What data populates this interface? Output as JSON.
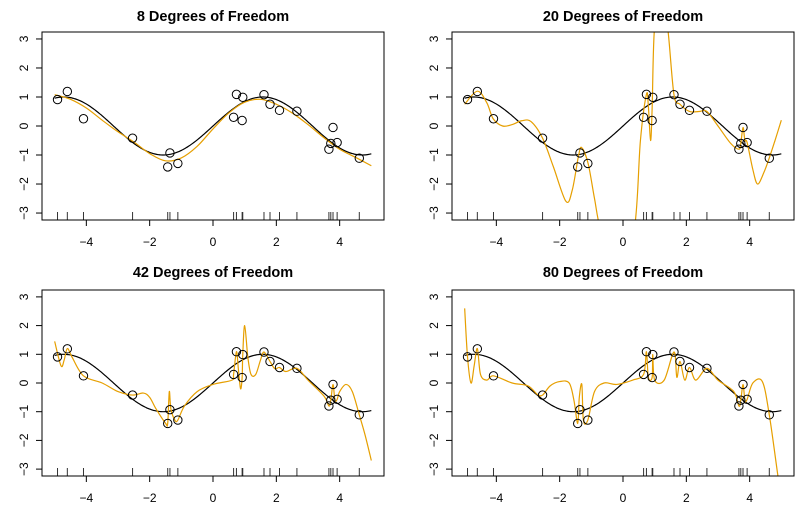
{
  "chart_data": [
    {
      "type": "line",
      "title": "8 Degrees of Freedom",
      "xlim": [
        -5.4,
        5.4
      ],
      "ylim": [
        -3.24,
        3.24
      ],
      "xticks": [
        -4,
        -2,
        0,
        2,
        4
      ],
      "yticks": [
        -3,
        -2,
        -1,
        0,
        1,
        2,
        3
      ],
      "true_function": "sin(x)",
      "points": [
        [
          -4.91,
          0.91
        ],
        [
          -4.6,
          1.19
        ],
        [
          -4.09,
          0.25
        ],
        [
          -2.54,
          -0.42
        ],
        [
          -1.36,
          -0.93
        ],
        [
          -1.43,
          -1.41
        ],
        [
          -1.11,
          -1.29
        ],
        [
          0.74,
          1.09
        ],
        [
          0.65,
          0.3
        ],
        [
          0.94,
          0.99
        ],
        [
          0.92,
          0.19
        ],
        [
          1.61,
          1.08
        ],
        [
          1.8,
          0.75
        ],
        [
          2.1,
          0.54
        ],
        [
          2.65,
          0.51
        ],
        [
          3.79,
          -0.05
        ],
        [
          3.66,
          -0.8
        ],
        [
          3.72,
          -0.6
        ],
        [
          3.92,
          -0.57
        ],
        [
          4.62,
          -1.11
        ]
      ],
      "fit": [
        [
          -5,
          1.08
        ],
        [
          -4.5,
          0.92
        ],
        [
          -4,
          0.62
        ],
        [
          -3.5,
          0.2
        ],
        [
          -3,
          -0.2
        ],
        [
          -2.5,
          -0.55
        ],
        [
          -2,
          -0.95
        ],
        [
          -1.5,
          -1.2
        ],
        [
          -1,
          -1.1
        ],
        [
          -0.5,
          -0.7
        ],
        [
          0,
          -0.1
        ],
        [
          0.5,
          0.45
        ],
        [
          1,
          0.82
        ],
        [
          1.5,
          0.92
        ],
        [
          2,
          0.75
        ],
        [
          2.5,
          0.45
        ],
        [
          3,
          0.05
        ],
        [
          3.5,
          -0.4
        ],
        [
          4,
          -0.8
        ],
        [
          4.5,
          -1.08
        ],
        [
          5,
          -1.37
        ]
      ],
      "colors": {
        "fit": "#E69F00",
        "truth": "#000000"
      }
    },
    {
      "type": "line",
      "title": "20 Degrees of Freedom",
      "xlim": [
        -5.4,
        5.4
      ],
      "ylim": [
        -3.24,
        3.24
      ],
      "xticks": [
        -4,
        -2,
        0,
        2,
        4
      ],
      "yticks": [
        -3,
        -2,
        -1,
        0,
        1,
        2,
        3
      ],
      "true_function": "sin(x)",
      "points": [
        [
          -4.91,
          0.91
        ],
        [
          -4.6,
          1.19
        ],
        [
          -4.09,
          0.25
        ],
        [
          -2.54,
          -0.42
        ],
        [
          -1.36,
          -0.93
        ],
        [
          -1.43,
          -1.41
        ],
        [
          -1.11,
          -1.29
        ],
        [
          0.74,
          1.09
        ],
        [
          0.65,
          0.3
        ],
        [
          0.94,
          0.99
        ],
        [
          0.92,
          0.19
        ],
        [
          1.61,
          1.08
        ],
        [
          1.8,
          0.75
        ],
        [
          2.1,
          0.54
        ],
        [
          2.65,
          0.51
        ],
        [
          3.79,
          -0.05
        ],
        [
          3.66,
          -0.8
        ],
        [
          3.72,
          -0.6
        ],
        [
          3.92,
          -0.57
        ],
        [
          4.62,
          -1.11
        ]
      ],
      "fit": [
        [
          -5,
          0.75
        ],
        [
          -4.6,
          1.2
        ],
        [
          -4.3,
          0.8
        ],
        [
          -4.1,
          0.25
        ],
        [
          -3.8,
          0.0
        ],
        [
          -3.5,
          0.05
        ],
        [
          -3.2,
          0.18
        ],
        [
          -2.9,
          0.15
        ],
        [
          -2.54,
          -0.42
        ],
        [
          -2.2,
          -1.4
        ],
        [
          -1.8,
          -2.6
        ],
        [
          -1.6,
          -2.2
        ],
        [
          -1.4,
          -1.0
        ],
        [
          -1.3,
          -0.75
        ],
        [
          -1.1,
          -1.3
        ],
        [
          -0.9,
          -2.5
        ],
        [
          -0.7,
          -3.6
        ],
        [
          -0.2,
          -5
        ],
        [
          0.35,
          -3.6
        ],
        [
          0.55,
          -0.5
        ],
        [
          0.74,
          1.09
        ],
        [
          0.8,
          0.7
        ],
        [
          0.87,
          -0.5
        ],
        [
          0.92,
          0.6
        ],
        [
          0.99,
          3.3
        ],
        [
          1.2,
          5
        ],
        [
          1.42,
          3.3
        ],
        [
          1.61,
          1.08
        ],
        [
          1.8,
          0.75
        ],
        [
          2.1,
          0.5
        ],
        [
          2.4,
          0.5
        ],
        [
          2.65,
          0.5
        ],
        [
          3.0,
          0.0
        ],
        [
          3.4,
          -0.6
        ],
        [
          3.66,
          -0.8
        ],
        [
          3.72,
          -0.6
        ],
        [
          3.79,
          -0.05
        ],
        [
          3.85,
          -0.5
        ],
        [
          3.92,
          -0.57
        ],
        [
          4.1,
          -1.5
        ],
        [
          4.25,
          -2.0
        ],
        [
          4.45,
          -1.6
        ],
        [
          4.62,
          -1.1
        ],
        [
          4.8,
          -0.5
        ],
        [
          5,
          0.2
        ]
      ],
      "colors": {
        "fit": "#E69F00",
        "truth": "#000000"
      }
    },
    {
      "type": "line",
      "title": "42 Degrees of Freedom",
      "xlim": [
        -5.4,
        5.4
      ],
      "ylim": [
        -3.24,
        3.24
      ],
      "xticks": [
        -4,
        -2,
        0,
        2,
        4
      ],
      "yticks": [
        -3,
        -2,
        -1,
        0,
        1,
        2,
        3
      ],
      "true_function": "sin(x)",
      "points": [
        [
          -4.91,
          0.91
        ],
        [
          -4.6,
          1.19
        ],
        [
          -4.09,
          0.25
        ],
        [
          -2.54,
          -0.42
        ],
        [
          -1.36,
          -0.93
        ],
        [
          -1.43,
          -1.41
        ],
        [
          -1.11,
          -1.29
        ],
        [
          0.74,
          1.09
        ],
        [
          0.65,
          0.3
        ],
        [
          0.94,
          0.99
        ],
        [
          0.92,
          0.19
        ],
        [
          1.61,
          1.08
        ],
        [
          1.8,
          0.75
        ],
        [
          2.1,
          0.54
        ],
        [
          2.65,
          0.51
        ],
        [
          3.79,
          -0.05
        ],
        [
          3.66,
          -0.8
        ],
        [
          3.72,
          -0.6
        ],
        [
          3.92,
          -0.57
        ],
        [
          4.62,
          -1.11
        ]
      ],
      "fit": [
        [
          -5,
          1.45
        ],
        [
          -4.8,
          0.6
        ],
        [
          -4.7,
          0.8
        ],
        [
          -4.6,
          1.2
        ],
        [
          -4.45,
          0.9
        ],
        [
          -4.09,
          0.25
        ],
        [
          -3.5,
          0.0
        ],
        [
          -3,
          -0.3
        ],
        [
          -2.54,
          -0.42
        ],
        [
          -2.2,
          -0.35
        ],
        [
          -2,
          -0.5
        ],
        [
          -1.8,
          -0.9
        ],
        [
          -1.5,
          -1.4
        ],
        [
          -1.43,
          -1.4
        ],
        [
          -1.38,
          -0.3
        ],
        [
          -1.33,
          -0.9
        ],
        [
          -1.2,
          -1.3
        ],
        [
          -1.11,
          -1.29
        ],
        [
          -0.9,
          -0.8
        ],
        [
          -0.5,
          -0.3
        ],
        [
          0,
          -0.05
        ],
        [
          0.6,
          0.1
        ],
        [
          0.65,
          0.3
        ],
        [
          0.74,
          1.09
        ],
        [
          0.8,
          0.5
        ],
        [
          0.87,
          -0.2
        ],
        [
          0.92,
          0.19
        ],
        [
          0.94,
          0.99
        ],
        [
          1.0,
          2.0
        ],
        [
          1.1,
          0.9
        ],
        [
          1.2,
          0.3
        ],
        [
          1.35,
          0.3
        ],
        [
          1.5,
          0.8
        ],
        [
          1.61,
          1.08
        ],
        [
          1.8,
          0.75
        ],
        [
          1.95,
          0.5
        ],
        [
          2.1,
          0.54
        ],
        [
          2.3,
          0.4
        ],
        [
          2.65,
          0.51
        ],
        [
          3.0,
          0.1
        ],
        [
          3.5,
          -0.45
        ],
        [
          3.66,
          -0.8
        ],
        [
          3.72,
          -0.6
        ],
        [
          3.79,
          -0.05
        ],
        [
          3.85,
          -0.6
        ],
        [
          3.92,
          -0.57
        ],
        [
          4.0,
          -0.3
        ],
        [
          4.2,
          -0.05
        ],
        [
          4.4,
          -0.3
        ],
        [
          4.62,
          -1.11
        ],
        [
          4.8,
          -1.8
        ],
        [
          5.0,
          -2.7
        ]
      ],
      "colors": {
        "fit": "#E69F00",
        "truth": "#000000"
      }
    },
    {
      "type": "line",
      "title": "80 Degrees of Freedom",
      "xlim": [
        -5.4,
        5.4
      ],
      "ylim": [
        -3.24,
        3.24
      ],
      "xticks": [
        -4,
        -2,
        0,
        2,
        4
      ],
      "yticks": [
        -3,
        -2,
        -1,
        0,
        1,
        2,
        3
      ],
      "true_function": "sin(x)",
      "points": [
        [
          -4.91,
          0.91
        ],
        [
          -4.6,
          1.19
        ],
        [
          -4.09,
          0.25
        ],
        [
          -2.54,
          -0.42
        ],
        [
          -1.36,
          -0.93
        ],
        [
          -1.43,
          -1.41
        ],
        [
          -1.11,
          -1.29
        ],
        [
          0.74,
          1.09
        ],
        [
          0.65,
          0.3
        ],
        [
          0.94,
          0.99
        ],
        [
          0.92,
          0.19
        ],
        [
          1.61,
          1.08
        ],
        [
          1.8,
          0.75
        ],
        [
          2.1,
          0.54
        ],
        [
          2.65,
          0.51
        ],
        [
          3.79,
          -0.05
        ],
        [
          3.66,
          -0.8
        ],
        [
          3.72,
          -0.6
        ],
        [
          3.92,
          -0.57
        ],
        [
          4.62,
          -1.11
        ]
      ],
      "fit": [
        [
          -5,
          2.6
        ],
        [
          -4.91,
          0.91
        ],
        [
          -4.8,
          0.0
        ],
        [
          -4.7,
          0.6
        ],
        [
          -4.6,
          1.2
        ],
        [
          -4.5,
          0.3
        ],
        [
          -4.3,
          0.1
        ],
        [
          -4.09,
          0.25
        ],
        [
          -3.5,
          0.0
        ],
        [
          -3,
          -0.1
        ],
        [
          -2.7,
          -0.4
        ],
        [
          -2.54,
          -0.42
        ],
        [
          -2.3,
          -0.1
        ],
        [
          -2.0,
          0.05
        ],
        [
          -1.7,
          0.0
        ],
        [
          -1.55,
          -0.6
        ],
        [
          -1.43,
          -1.41
        ],
        [
          -1.38,
          -0.5
        ],
        [
          -1.3,
          -0.05
        ],
        [
          -1.25,
          -1.3
        ],
        [
          -1.11,
          -1.29
        ],
        [
          -0.9,
          -0.3
        ],
        [
          -0.6,
          0.0
        ],
        [
          -0.2,
          -0.05
        ],
        [
          0.3,
          0.1
        ],
        [
          0.65,
          0.3
        ],
        [
          0.74,
          1.09
        ],
        [
          0.8,
          0.2
        ],
        [
          0.92,
          0.19
        ],
        [
          0.94,
          0.99
        ],
        [
          1.0,
          0.1
        ],
        [
          1.3,
          0.1
        ],
        [
          1.61,
          1.08
        ],
        [
          1.7,
          0.2
        ],
        [
          1.8,
          0.75
        ],
        [
          1.95,
          0.1
        ],
        [
          2.1,
          0.54
        ],
        [
          2.3,
          0.1
        ],
        [
          2.65,
          0.51
        ],
        [
          3.0,
          0.1
        ],
        [
          3.5,
          -0.3
        ],
        [
          3.66,
          -0.8
        ],
        [
          3.72,
          -0.6
        ],
        [
          3.79,
          -0.05
        ],
        [
          3.85,
          -0.6
        ],
        [
          3.92,
          -0.57
        ],
        [
          4.1,
          0.0
        ],
        [
          4.4,
          0.05
        ],
        [
          4.62,
          -1.11
        ],
        [
          4.9,
          -3.3
        ],
        [
          5,
          -4
        ]
      ],
      "colors": {
        "fit": "#E69F00",
        "truth": "#000000"
      }
    }
  ]
}
